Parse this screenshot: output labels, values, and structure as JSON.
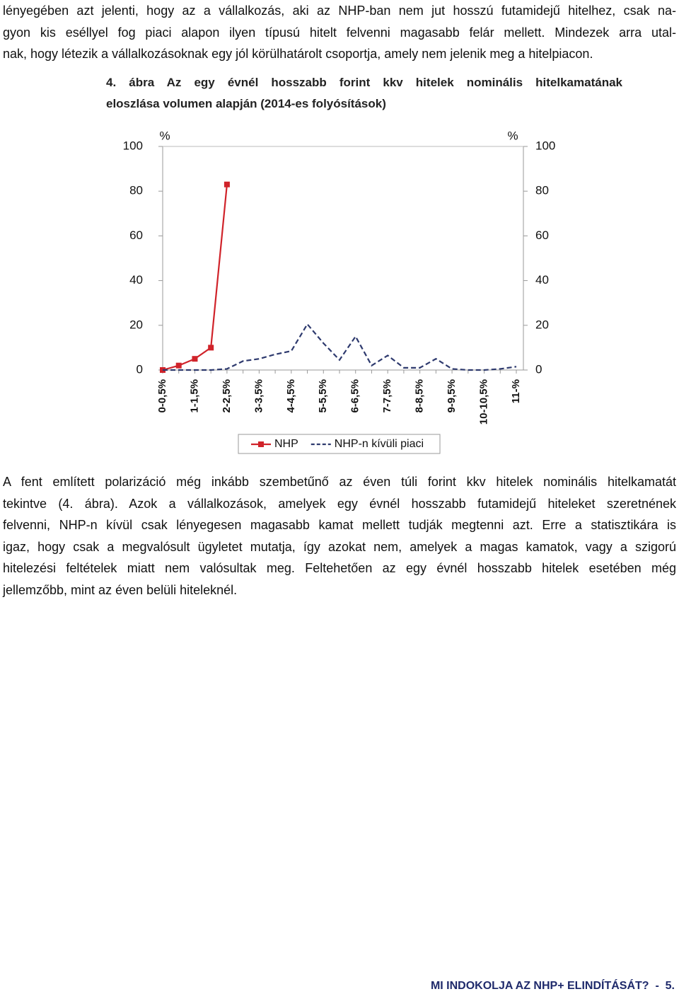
{
  "intro": {
    "lines": [
      "lényegében azt jelenti, hogy az a vállalkozás, aki az NHP-ban nem jut hosszú futamidejű hitelhez, csak na-",
      "gyon kis eséllyel fog piaci alapon ilyen típusú hitelt felvenni magasabb felár mellett. Mindezek arra utal-",
      "nak, hogy létezik a vállalkozásoknak egy jól körülhatárolt csoportja, amely nem jelenik meg a hitelpiacon."
    ]
  },
  "figure": {
    "caption": [
      "4.  ábra Az egy évnél hosszabb forint kkv hitelek nominális hitelkamatának",
      "eloszlása volumen alapján (2014-es folyósítások)"
    ]
  },
  "chart_data": {
    "type": "line",
    "ylabel": "%",
    "y2label": "%",
    "categories": [
      "0-0,5%",
      null,
      "1-1,5%",
      null,
      "2-2,5%",
      null,
      "3-3,5%",
      null,
      "4-4,5%",
      null,
      "5-5,5%",
      null,
      "6-6,5%",
      null,
      "7-7,5%",
      null,
      "8-8,5%",
      null,
      "9-9,5%",
      null,
      "10-10,5%",
      null,
      "11-%"
    ],
    "series": [
      {
        "name": "NHP",
        "color": "#d0232a",
        "dashed": false,
        "markers": true,
        "values": [
          0,
          2,
          5,
          10,
          83,
          null,
          null,
          null,
          null,
          null,
          null,
          null,
          null,
          null,
          null,
          null,
          null,
          null,
          null,
          null,
          null,
          null,
          null
        ]
      },
      {
        "name": "NHP-n kívüli piaci",
        "color": "#2e3a6e",
        "dashed": true,
        "markers": false,
        "axis": "y2",
        "values": [
          0,
          0,
          0,
          0,
          0.5,
          4,
          5,
          7,
          8.5,
          20.5,
          12,
          4.5,
          15,
          2,
          6.5,
          1,
          1,
          5,
          0.5,
          0,
          0,
          0.5,
          1.5
        ]
      }
    ],
    "ylim": [
      0,
      100
    ],
    "yticks": [
      0,
      20,
      40,
      60,
      80,
      100
    ],
    "y2lim": [
      0,
      100
    ],
    "y2ticks": [
      0,
      20,
      40,
      60,
      80,
      100
    ],
    "legend": "bottom"
  },
  "body": {
    "lines": [
      "A fent említett polarizáció még inkább szembetűnő az éven túli forint kkv hitelek nominális hitelkamatát",
      "tekintve (4. ábra). Azok a vállalkozások, amelyek egy évnél hosszabb futamidejű hiteleket szeretnének",
      "felvenni, NHP-n kívül csak lényegesen magasabb kamat mellett tudják megtenni azt. Erre a statisztikára is",
      "igaz, hogy csak a megvalósult ügyletet mutatja, így azokat nem, amelyek a magas kamatok, vagy a szigorú",
      "hitelezési feltételek miatt nem valósultak meg. Feltehetően az egy évnél hosszabb hitelek esetében még",
      "jellemzőbb, mint az éven belüli hiteleknél."
    ]
  },
  "footer": {
    "text": "MI INDOKOLJA AZ NHP+ ELINDÍTÁSÁT?  -  5."
  }
}
